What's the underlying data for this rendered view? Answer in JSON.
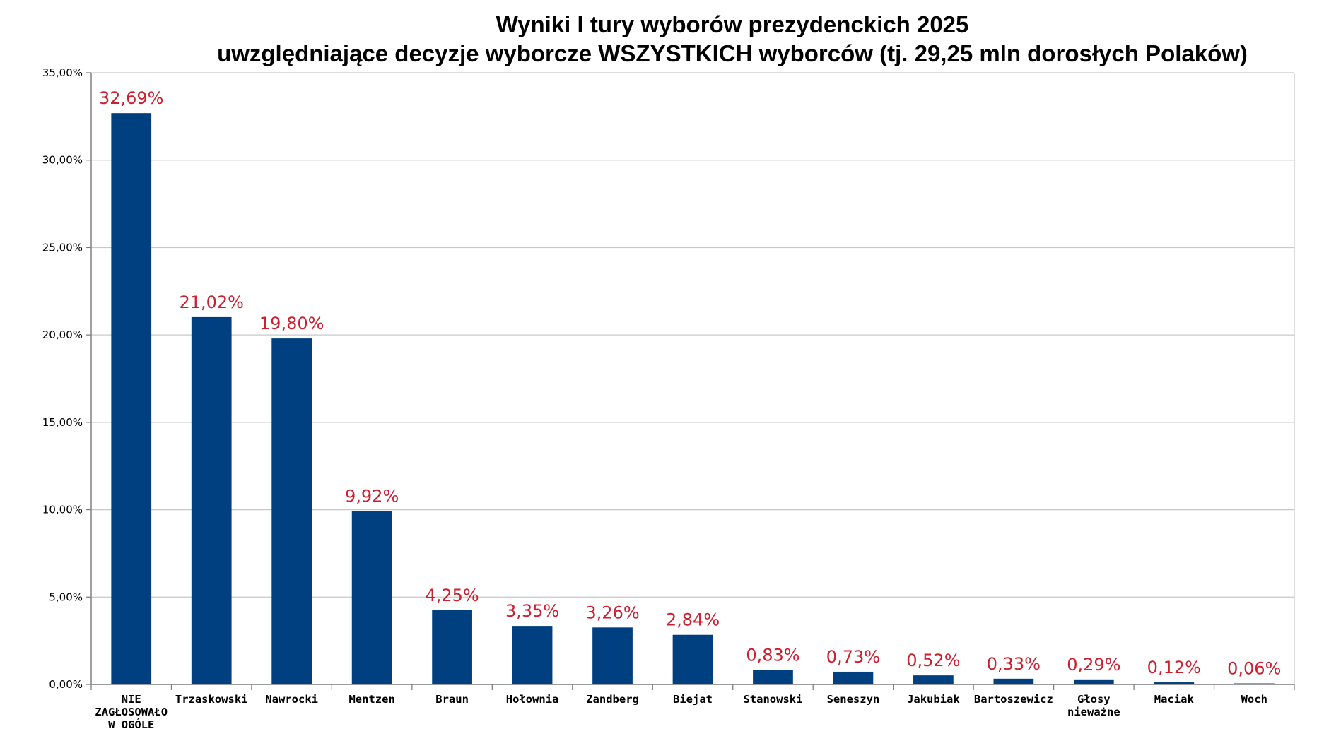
{
  "colors": {
    "bar": "#004080",
    "data_label": "#cc1f2f",
    "grid": "#c8c8c8",
    "axis": "#808080",
    "background": "#ffffff",
    "outer_background": "#000000"
  },
  "chart_data": {
    "type": "bar",
    "title": "Wyniki I tury wyborów prezydenckich 2025",
    "subtitle": "uwzględniające decyzje wyborcze WSZYSTKICH wyborców (tj. 29,25 mln dorosłych Polaków)",
    "xlabel": "",
    "ylabel": "",
    "ylim": [
      0,
      35
    ],
    "yticks": [
      0,
      5,
      10,
      15,
      20,
      25,
      30,
      35
    ],
    "ytick_labels": [
      "0,00%",
      "5,00%",
      "10,00%",
      "15,00%",
      "20,00%",
      "25,00%",
      "30,00%",
      "35,00%"
    ],
    "grid": true,
    "legend": "none",
    "categories": [
      [
        "NIE",
        "ZAGŁOSOWAŁO",
        "W OGÓLE"
      ],
      [
        "Trzaskowski"
      ],
      [
        "Nawrocki"
      ],
      [
        "Mentzen"
      ],
      [
        "Braun"
      ],
      [
        "Hołownia"
      ],
      [
        "Zandberg"
      ],
      [
        "Biejat"
      ],
      [
        "Stanowski"
      ],
      [
        "Seneszyn"
      ],
      [
        "Jakubiak"
      ],
      [
        "Bartoszewicz"
      ],
      [
        "Głosy",
        "nieważne"
      ],
      [
        "Maciak"
      ],
      [
        "Woch"
      ]
    ],
    "values": [
      32.69,
      21.02,
      19.8,
      9.92,
      4.25,
      3.35,
      3.26,
      2.84,
      0.83,
      0.73,
      0.52,
      0.33,
      0.29,
      0.12,
      0.06
    ],
    "data_labels": [
      "32,69%",
      "21,02%",
      "19,80%",
      "9,92%",
      "4,25%",
      "3,35%",
      "3,26%",
      "2,84%",
      "0,83%",
      "0,73%",
      "0,52%",
      "0,33%",
      "0,29%",
      "0,12%",
      "0,06%"
    ]
  }
}
